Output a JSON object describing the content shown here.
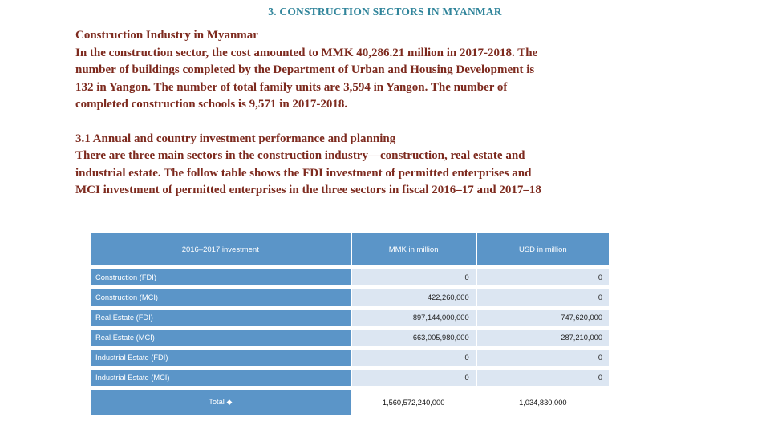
{
  "slide": {
    "title": "3. CONSTRUCTION SECTORS IN MYANMAR",
    "paragraphs": [
      {
        "lines": [
          "Construction Industry in Myanmar",
          "In the construction sector, the cost amounted to MMK 40,286.21 million in 2017-2018. The",
          "number of buildings completed by the Department of Urban and Housing Development is",
          "132 in Yangon. The number of total family units are 3,594 in Yangon. The number of",
          "completed construction schools is 9,571 in 2017-2018."
        ]
      },
      {
        "lines": [
          "3.1 Annual and country investment performance and planning",
          "There are three main sectors in the construction industry—construction, real estate and",
          "industrial estate. The follow table shows the FDI investment of permitted enterprises and",
          "MCI investment of permitted enterprises in the three sectors in fiscal 2016–17 and 2017–18"
        ]
      }
    ]
  },
  "table": {
    "headers": [
      "2016–2017 investment",
      "MMK in million",
      "USD in million"
    ],
    "rows": [
      {
        "label": "Construction (FDI)",
        "mmk": "0",
        "usd": "0"
      },
      {
        "label": "Construction (MCI)",
        "mmk": "422,260,000",
        "usd": "0"
      },
      {
        "label": "Real Estate (FDI)",
        "mmk": "897,144,000,000",
        "usd": "747,620,000"
      },
      {
        "label": "Real Estate (MCI)",
        "mmk": "663,005,980,000",
        "usd": "287,210,000"
      },
      {
        "label": "Industrial Estate (FDI)",
        "mmk": "0",
        "usd": "0"
      },
      {
        "label": "Industrial Estate (MCI)",
        "mmk": "0",
        "usd": "0"
      }
    ],
    "total": {
      "label": "Total",
      "icon": "◆",
      "mmk": "1,560,572,240,000",
      "usd": "1,034,830,000"
    }
  },
  "colors": {
    "title-color": "#31859b",
    "body-color": "#7d2a1e",
    "table-blue": "#5b95c8",
    "cell-light": "#dce6f2"
  }
}
